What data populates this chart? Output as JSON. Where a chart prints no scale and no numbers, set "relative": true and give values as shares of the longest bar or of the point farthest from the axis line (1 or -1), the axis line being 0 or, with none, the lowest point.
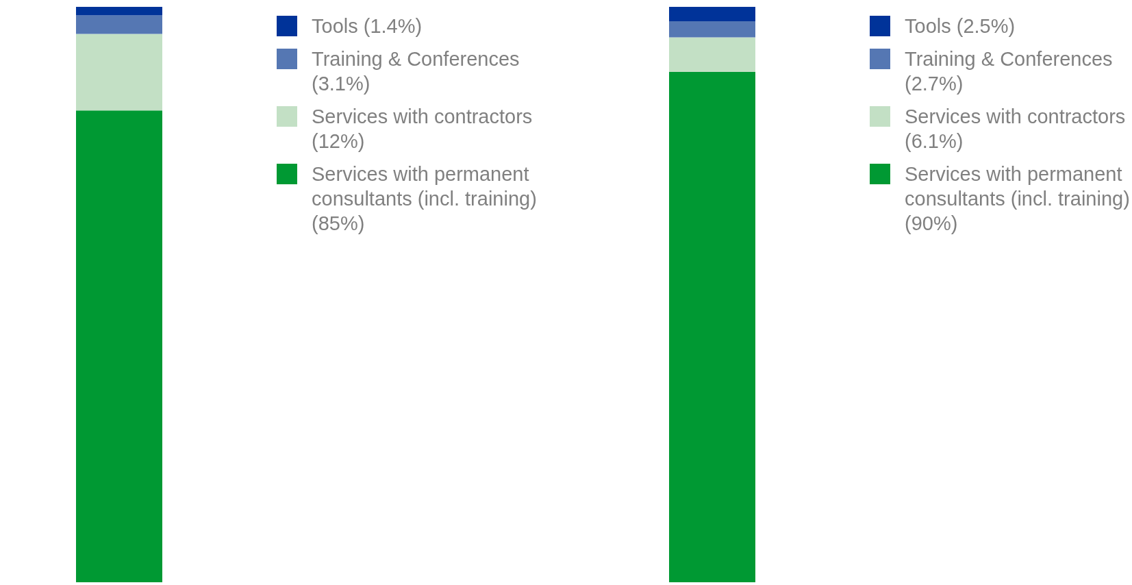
{
  "chart_data": [
    {
      "type": "bar",
      "stacked": true,
      "relative": true,
      "legend": "right",
      "categories": [
        null
      ],
      "series": [
        {
          "name": "Services with permanent consultants (incl. training) (85%)",
          "color": "#009933",
          "values": [
            0.82
          ]
        },
        {
          "name": "Services with contractors (12%)",
          "color": "#c3e0c5",
          "values": [
            0.133
          ]
        },
        {
          "name": "Training & Conferences (3.1%)",
          "color": "#5577b3",
          "values": [
            0.032
          ]
        },
        {
          "name": "Tools (1.4%)",
          "color": "#003399",
          "values": [
            0.015
          ]
        }
      ]
    },
    {
      "type": "bar",
      "stacked": true,
      "relative": true,
      "legend": "right",
      "categories": [
        null
      ],
      "series": [
        {
          "name": "Services with permanent consultants (incl. training) (90%)",
          "color": "#009933",
          "values": [
            0.887
          ]
        },
        {
          "name": "Services with contractors (6.1%)",
          "color": "#c3e0c5",
          "values": [
            0.06
          ]
        },
        {
          "name": "Training & Conferences (2.7%)",
          "color": "#5577b3",
          "values": [
            0.028
          ]
        },
        {
          "name": "Tools (2.5%)",
          "color": "#003399",
          "values": [
            0.025
          ]
        }
      ]
    }
  ]
}
